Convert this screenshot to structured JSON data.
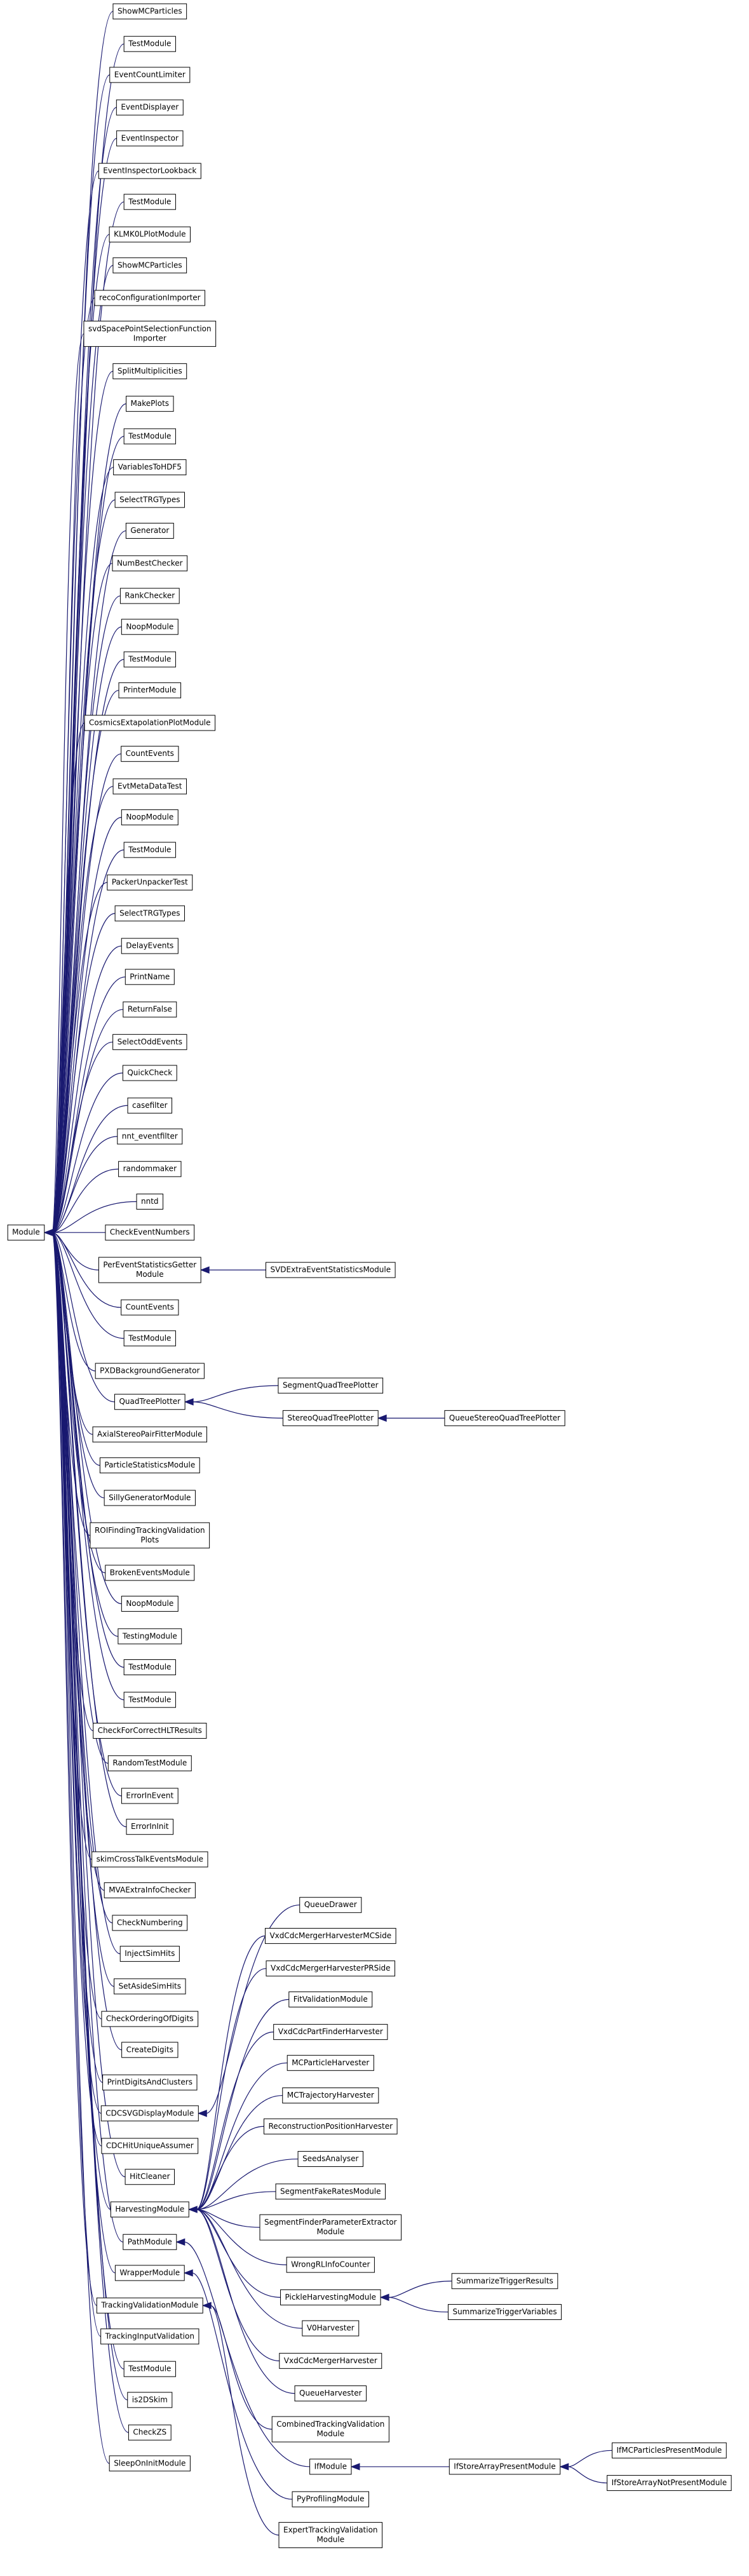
{
  "nodes": [
    {
      "lines": [
        "Module"
      ]
    },
    {
      "lines": [
        "ShowMCParticles"
      ]
    },
    {
      "lines": [
        "TestModule"
      ]
    },
    {
      "lines": [
        "EventCountLimiter"
      ]
    },
    {
      "lines": [
        "EventDisplayer"
      ]
    },
    {
      "lines": [
        "EventInspector"
      ]
    },
    {
      "lines": [
        "EventInspectorLookback"
      ]
    },
    {
      "lines": [
        "TestModule"
      ]
    },
    {
      "lines": [
        "KLMK0LPlotModule"
      ]
    },
    {
      "lines": [
        "ShowMCParticles"
      ]
    },
    {
      "lines": [
        "recoConfigurationImporter"
      ]
    },
    {
      "lines": [
        "svdSpacePointSelectionFunction",
        "Importer"
      ]
    },
    {
      "lines": [
        "SplitMultiplicities"
      ]
    },
    {
      "lines": [
        "MakePlots"
      ]
    },
    {
      "lines": [
        "TestModule"
      ]
    },
    {
      "lines": [
        "VariablesToHDF5"
      ]
    },
    {
      "lines": [
        "SelectTRGTypes"
      ]
    },
    {
      "lines": [
        "Generator"
      ]
    },
    {
      "lines": [
        "NumBestChecker"
      ]
    },
    {
      "lines": [
        "RankChecker"
      ]
    },
    {
      "lines": [
        "NoopModule"
      ]
    },
    {
      "lines": [
        "TestModule"
      ]
    },
    {
      "lines": [
        "PrinterModule"
      ]
    },
    {
      "lines": [
        "CosmicsExtapolationPlotModule"
      ]
    },
    {
      "lines": [
        "CountEvents"
      ]
    },
    {
      "lines": [
        "EvtMetaDataTest"
      ]
    },
    {
      "lines": [
        "NoopModule"
      ]
    },
    {
      "lines": [
        "TestModule"
      ]
    },
    {
      "lines": [
        "PackerUnpackerTest"
      ]
    },
    {
      "lines": [
        "SelectTRGTypes"
      ]
    },
    {
      "lines": [
        "DelayEvents"
      ]
    },
    {
      "lines": [
        "PrintName"
      ]
    },
    {
      "lines": [
        "ReturnFalse"
      ]
    },
    {
      "lines": [
        "SelectOddEvents"
      ]
    },
    {
      "lines": [
        "QuickCheck"
      ]
    },
    {
      "lines": [
        "casefilter"
      ]
    },
    {
      "lines": [
        "nnt_eventfilter"
      ]
    },
    {
      "lines": [
        "randommaker"
      ]
    },
    {
      "lines": [
        "nntd"
      ]
    },
    {
      "lines": [
        "CheckEventNumbers"
      ]
    },
    {
      "lines": [
        "PerEventStatisticsGetter",
        "Module"
      ]
    },
    {
      "lines": [
        "CountEvents"
      ]
    },
    {
      "lines": [
        "TestModule"
      ]
    },
    {
      "lines": [
        "PXDBackgroundGenerator"
      ]
    },
    {
      "lines": [
        "QuadTreePlotter"
      ]
    },
    {
      "lines": [
        "AxialStereoPairFitterModule"
      ]
    },
    {
      "lines": [
        "ParticleStatisticsModule"
      ]
    },
    {
      "lines": [
        "SillyGeneratorModule"
      ]
    },
    {
      "lines": [
        "ROIFindingTrackingValidation",
        "Plots"
      ]
    },
    {
      "lines": [
        "BrokenEventsModule"
      ]
    },
    {
      "lines": [
        "NoopModule"
      ]
    },
    {
      "lines": [
        "TestingModule"
      ]
    },
    {
      "lines": [
        "TestModule"
      ]
    },
    {
      "lines": [
        "TestModule"
      ]
    },
    {
      "lines": [
        "CheckForCorrectHLTResults"
      ]
    },
    {
      "lines": [
        "RandomTestModule"
      ]
    },
    {
      "lines": [
        "ErrorInEvent"
      ]
    },
    {
      "lines": [
        "ErrorInInit"
      ]
    },
    {
      "lines": [
        "skimCrossTalkEventsModule"
      ]
    },
    {
      "lines": [
        "MVAExtraInfoChecker"
      ]
    },
    {
      "lines": [
        "CheckNumbering"
      ]
    },
    {
      "lines": [
        "InjectSimHits"
      ]
    },
    {
      "lines": [
        "SetAsideSimHits"
      ]
    },
    {
      "lines": [
        "CheckOrderingOfDigits"
      ]
    },
    {
      "lines": [
        "CreateDigits"
      ]
    },
    {
      "lines": [
        "PrintDigitsAndClusters"
      ]
    },
    {
      "lines": [
        "CDCSVGDisplayModule"
      ]
    },
    {
      "lines": [
        "CDCHitUniqueAssumer"
      ]
    },
    {
      "lines": [
        "HitCleaner"
      ]
    },
    {
      "lines": [
        "HarvestingModule"
      ]
    },
    {
      "lines": [
        "PathModule"
      ]
    },
    {
      "lines": [
        "WrapperModule"
      ]
    },
    {
      "lines": [
        "TrackingValidationModule"
      ]
    },
    {
      "lines": [
        "TrackingInputValidation"
      ]
    },
    {
      "lines": [
        "TestModule"
      ]
    },
    {
      "lines": [
        "is2DSkim"
      ]
    },
    {
      "lines": [
        "CheckZS"
      ]
    },
    {
      "lines": [
        "SleepOnInitModule"
      ]
    },
    {
      "lines": [
        "SVDExtraEventStatisticsModule"
      ]
    },
    {
      "lines": [
        "SegmentQuadTreePlotter"
      ]
    },
    {
      "lines": [
        "StereoQuadTreePlotter"
      ]
    },
    {
      "lines": [
        "QueueStereoQuadTreePlotter"
      ]
    },
    {
      "lines": [
        "QueueDrawer"
      ]
    },
    {
      "lines": [
        "VxdCdcMergerHarvesterMCSide"
      ]
    },
    {
      "lines": [
        "VxdCdcMergerHarvesterPRSide"
      ]
    },
    {
      "lines": [
        "FitValidationModule"
      ]
    },
    {
      "lines": [
        "VxdCdcPartFinderHarvester"
      ]
    },
    {
      "lines": [
        "MCParticleHarvester"
      ]
    },
    {
      "lines": [
        "MCTrajectoryHarvester"
      ]
    },
    {
      "lines": [
        "ReconstructionPositionHarvester"
      ]
    },
    {
      "lines": [
        "SeedsAnalyser"
      ]
    },
    {
      "lines": [
        "SegmentFakeRatesModule"
      ]
    },
    {
      "lines": [
        "SegmentFinderParameterExtractor",
        "Module"
      ]
    },
    {
      "lines": [
        "WrongRLInfoCounter"
      ]
    },
    {
      "lines": [
        "PickleHarvestingModule"
      ]
    },
    {
      "lines": [
        "SummarizeTriggerResults"
      ]
    },
    {
      "lines": [
        "SummarizeTriggerVariables"
      ]
    },
    {
      "lines": [
        "V0Harvester"
      ]
    },
    {
      "lines": [
        "VxdCdcMergerHarvester"
      ]
    },
    {
      "lines": [
        "QueueHarvester"
      ]
    },
    {
      "lines": [
        "CombinedTrackingValidation",
        "Module"
      ]
    },
    {
      "lines": [
        "IfModule"
      ]
    },
    {
      "lines": [
        "IfStoreArrayPresentModule"
      ]
    },
    {
      "lines": [
        "IfMCParticlesPresentModule"
      ]
    },
    {
      "lines": [
        "IfStoreArrayNotPresentModule"
      ]
    },
    {
      "lines": [
        "PyProfilingModule"
      ]
    },
    {
      "lines": [
        "ExpertTrackingValidation",
        "Module"
      ]
    }
  ]
}
